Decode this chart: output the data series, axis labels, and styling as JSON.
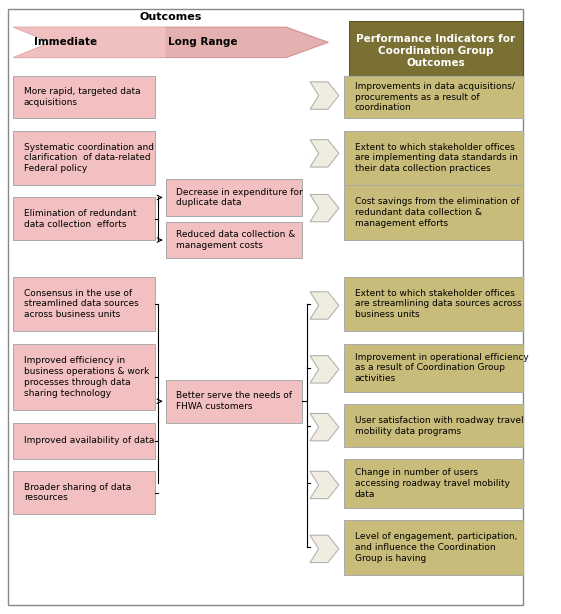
{
  "fig_width": 5.61,
  "fig_height": 6.14,
  "bg_color": "#ffffff",
  "pink_box_color": "#f2c0c0",
  "pink_box_edge": "#aaaaaa",
  "olive_box_color": "#c8bc7a",
  "olive_box_edge": "#aaaaaa",
  "arrow_fill": "#f0ede0",
  "arrow_edge": "#aaaaaa",
  "header_olive_color": "#7b7033",
  "header_olive_edge": "#5a5020",
  "header_text_color": "#ffffff",
  "outcomes_arrow_light": "#f5c8c8",
  "outcomes_arrow_dark": "#d07070",
  "outcomes_arrow_edge": "#c06060",
  "immediate_boxes": [
    "More rapid, targeted data\nacquisitions",
    "Systematic coordination and\nclarification  of data-related\nFederal policy",
    "Elimination of redundant\ndata collection  efforts",
    "Consensus in the use of\nstreamlined data sources\nacross business units",
    "Improved efficiency in\nbusiness operations & work\nprocesses through data\nsharing technology",
    "Improved availability of data",
    "Broader sharing of data\nresources"
  ],
  "mid_boxes": [
    "Decrease in expenditure for\nduplicate data",
    "Reduced data collection &\nmanagement costs",
    "Better serve the needs of\nFHWA customers"
  ],
  "right_boxes": [
    "Improvements in data acquisitions/\nprocurements as a result of\ncoordination",
    "Extent to which stakeholder offices\nare implementing data standards in\ntheir data collection practices",
    "Cost savings from the elimination of\nredundant data collection &\nmanagement efforts",
    "Extent to which stakeholder offices\nare streamlining data sources across\nbusiness units",
    "Improvement in operational efficiency\nas a result of Coordination Group\nactivities",
    "User satisfaction with roadway travel\nmobility data programs",
    "Change in number of users\naccessing roadway travel mobility\ndata",
    "Level of engagement, participation,\nand influence the Coordination\nGroup is having"
  ],
  "outer_border": "#888888"
}
